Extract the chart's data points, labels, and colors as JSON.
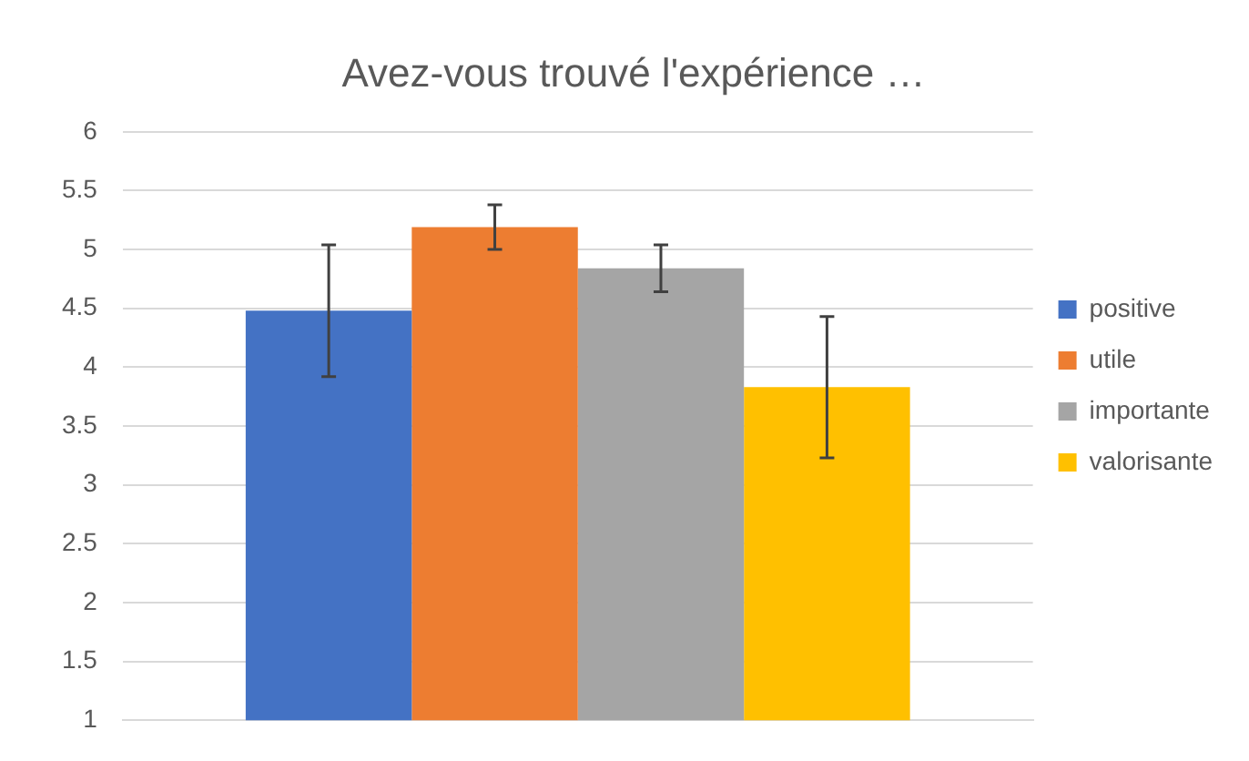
{
  "chart_data": {
    "type": "bar",
    "title": "Avez-vous trouvé l'expérience …",
    "categories": [
      null
    ],
    "series": [
      {
        "name": "positive",
        "color": "#4472c4",
        "values": [
          4.48
        ],
        "errors": [
          0.56
        ]
      },
      {
        "name": "utile",
        "color": "#ed7d31",
        "values": [
          5.19
        ],
        "errors": [
          0.19
        ]
      },
      {
        "name": "importante",
        "color": "#a5a5a5",
        "values": [
          4.84
        ],
        "errors": [
          0.2
        ]
      },
      {
        "name": "valorisante",
        "color": "#ffc000",
        "values": [
          3.83
        ],
        "errors": [
          0.6
        ]
      }
    ],
    "ylim": [
      1,
      6
    ],
    "yticks": [
      1,
      1.5,
      2,
      2.5,
      3,
      3.5,
      4,
      4.5,
      5,
      5.5,
      6
    ],
    "grid": "y",
    "legend": "right"
  }
}
